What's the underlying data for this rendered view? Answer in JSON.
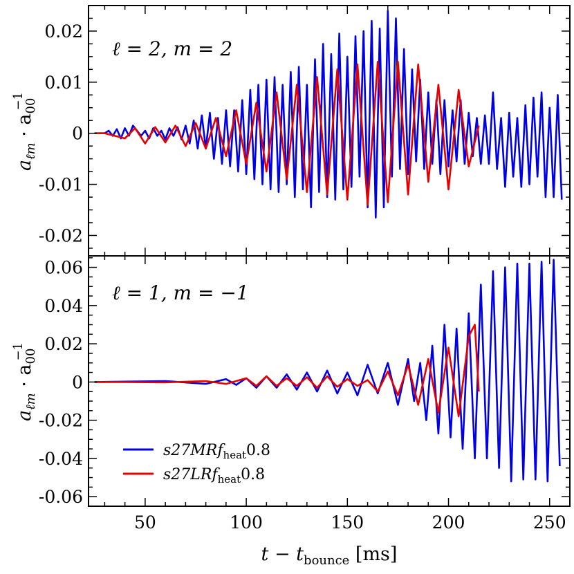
{
  "chart_data": [
    {
      "type": "line",
      "panel": "top",
      "annotation": "ℓ = 2, m = 2",
      "ylabel": "a_ℓm · a_00^-1",
      "xlim": [
        22,
        260
      ],
      "ylim": [
        -0.024,
        0.025
      ],
      "yticks": [
        -0.02,
        -0.01,
        0,
        0.01,
        0.02
      ],
      "ytick_labels": [
        "-0.02",
        "-0.01",
        "0",
        "0.01",
        "0.02"
      ],
      "xticks": [
        50,
        100,
        150,
        200,
        250
      ],
      "series": [
        {
          "name": "s27MRf_heat0.8",
          "color": "#0000e6",
          "x": [
            25,
            30,
            32,
            34,
            36,
            38,
            40,
            42,
            44,
            46,
            48,
            50,
            52,
            54,
            56,
            58,
            60,
            62,
            64,
            66,
            68,
            70,
            72,
            74,
            76,
            78,
            80,
            82,
            84,
            86,
            88,
            90,
            92,
            94,
            96,
            98,
            100,
            102,
            104,
            106,
            108,
            110,
            112,
            114,
            116,
            118,
            120,
            122,
            124,
            126,
            128,
            130,
            132,
            134,
            136,
            138,
            140,
            142,
            144,
            146,
            148,
            150,
            152,
            154,
            156,
            158,
            160,
            162,
            164,
            166,
            168,
            170,
            172,
            174,
            176,
            178,
            180,
            182,
            184,
            186,
            188,
            190,
            192,
            194,
            196,
            198,
            200,
            202,
            204,
            206,
            208,
            210,
            212,
            214,
            216,
            218,
            220,
            222,
            224,
            226,
            228,
            230,
            232,
            234,
            236,
            238,
            240,
            242,
            244,
            246,
            248,
            250,
            252,
            254,
            256
          ],
          "y": [
            0,
            0,
            0.0005,
            -0.0005,
            0.0008,
            -0.001,
            0.001,
            -0.0005,
            0.0015,
            0.0005,
            -0.0005,
            0.0005,
            -0.001,
            0.001,
            -0.0005,
            0.0005,
            -0.0012,
            0.001,
            -0.0005,
            0.0012,
            -0.0012,
            0.0015,
            -0.002,
            0.0025,
            -0.003,
            0.0035,
            -0.003,
            0.004,
            -0.005,
            0.003,
            -0.006,
            0.0045,
            -0.0065,
            0.0045,
            -0.0075,
            0.0065,
            -0.008,
            0.0085,
            -0.009,
            0.0095,
            -0.01,
            0.0105,
            -0.011,
            0.011,
            -0.0115,
            0.0095,
            -0.01,
            0.012,
            -0.0125,
            0.013,
            -0.011,
            0.0095,
            -0.0145,
            0.0145,
            -0.0115,
            0.0175,
            -0.0125,
            0.0155,
            -0.013,
            0.0195,
            -0.011,
            0.015,
            -0.0105,
            0.019,
            -0.0085,
            0.02,
            -0.0145,
            0.022,
            -0.0165,
            0.0205,
            -0.0145,
            0.024,
            -0.0085,
            0.0225,
            -0.007,
            0.0165,
            -0.008,
            0.0125,
            -0.0055,
            0.0105,
            -0.007,
            0.008,
            -0.006,
            0.0065,
            -0.008,
            0.0065,
            -0.0065,
            0.0045,
            -0.0055,
            0.0065,
            -0.006,
            0.004,
            -0.0045,
            0.003,
            -0.006,
            0.0035,
            -0.006,
            0.008,
            -0.007,
            0.003,
            -0.0105,
            0.004,
            -0.0085,
            0.003,
            -0.0105,
            0.0055,
            -0.01,
            0.007,
            -0.0085,
            0.008,
            -0.0125,
            0.005,
            -0.0125,
            0.0075,
            -0.013
          ]
        },
        {
          "name": "s27LRf_heat0.8",
          "color": "#e60000",
          "x": [
            25,
            30,
            35,
            40,
            45,
            50,
            55,
            60,
            65,
            70,
            75,
            80,
            85,
            90,
            95,
            100,
            105,
            110,
            115,
            120,
            125,
            130,
            135,
            140,
            145,
            150,
            155,
            160,
            165,
            170,
            175,
            180,
            185,
            190,
            195,
            200,
            205,
            210,
            215
          ],
          "y": [
            0,
            0,
            -0.0005,
            -0.001,
            0.001,
            -0.002,
            0.0012,
            -0.0018,
            0.0015,
            -0.0025,
            0.002,
            -0.003,
            0.003,
            -0.0045,
            0.0045,
            -0.006,
            0.006,
            -0.0075,
            0.008,
            -0.009,
            0.0095,
            -0.0115,
            0.011,
            -0.012,
            0.0125,
            -0.013,
            0.0135,
            -0.014,
            0.014,
            -0.0135,
            0.014,
            -0.012,
            0.0135,
            -0.0095,
            0.0095,
            -0.011,
            0.0085,
            -0.0065,
            0.0015
          ]
        }
      ]
    },
    {
      "type": "line",
      "panel": "bottom",
      "annotation": "ℓ = 1, m = −1",
      "ylabel": "a_ℓm · a_00^-1",
      "xlabel": "t − t_bounce [ms]",
      "xlim": [
        22,
        260
      ],
      "ylim": [
        -0.065,
        0.066
      ],
      "yticks": [
        -0.06,
        -0.04,
        -0.02,
        0,
        0.02,
        0.04,
        0.06
      ],
      "ytick_labels": [
        "-0.06",
        "-0.04",
        "-0.02",
        "0",
        "0.02",
        "0.04",
        "0.06"
      ],
      "xticks": [
        50,
        100,
        150,
        200,
        250
      ],
      "xtick_labels": [
        "50",
        "100",
        "150",
        "200",
        "250"
      ],
      "series": [
        {
          "name": "s27MRf_heat0.8",
          "color": "#0000e6",
          "x": [
            25,
            40,
            60,
            80,
            90,
            95,
            100,
            105,
            110,
            115,
            120,
            125,
            130,
            135,
            140,
            145,
            150,
            155,
            160,
            165,
            170,
            175,
            180,
            183,
            186,
            189,
            192,
            195,
            198,
            201,
            204,
            207,
            210,
            213,
            216,
            219,
            222,
            225,
            228,
            231,
            234,
            237,
            240,
            243,
            246,
            249,
            252,
            255
          ],
          "y": [
            0,
            0.0002,
            0.0005,
            -0.001,
            0.0015,
            -0.0015,
            0.002,
            -0.003,
            0.003,
            -0.003,
            0.004,
            -0.004,
            0.005,
            -0.005,
            0.006,
            -0.006,
            0.005,
            -0.007,
            0.009,
            -0.006,
            0.01,
            -0.012,
            0.012,
            -0.01,
            0.01,
            -0.02,
            0.019,
            -0.027,
            0.03,
            -0.029,
            0.028,
            -0.035,
            0.036,
            -0.04,
            0.051,
            -0.04,
            0.058,
            -0.045,
            0.06,
            -0.052,
            0.062,
            -0.051,
            0.062,
            -0.051,
            0.063,
            -0.052,
            0.064,
            -0.044
          ]
        },
        {
          "name": "s27LRf_heat0.8",
          "color": "#e60000",
          "x": [
            25,
            40,
            60,
            80,
            90,
            100,
            105,
            110,
            115,
            120,
            125,
            130,
            135,
            140,
            145,
            150,
            155,
            160,
            165,
            170,
            175,
            180,
            185,
            190,
            195,
            200,
            205,
            210,
            213,
            215
          ],
          "y": [
            0,
            0,
            -0.0002,
            0.0005,
            -0.001,
            0.002,
            -0.002,
            0.003,
            -0.002,
            0.002,
            -0.002,
            0.0025,
            -0.003,
            0.003,
            -0.0025,
            0.0015,
            -0.002,
            0.001,
            -0.005,
            0.0055,
            -0.007,
            0.009,
            -0.012,
            0.012,
            -0.016,
            0.018,
            -0.018,
            0.024,
            0.03,
            -0.005
          ]
        }
      ]
    }
  ],
  "legend": {
    "placement": "lower-left of bottom panel",
    "entries": [
      {
        "prefix": "s27MR",
        "symbol": "f",
        "subscript": "heat",
        "suffix": "0.8",
        "color": "#0000e6"
      },
      {
        "prefix": "s27LR",
        "symbol": "f",
        "subscript": "heat",
        "suffix": "0.8",
        "color": "#e60000"
      }
    ]
  },
  "labels": {
    "ylabel_main": "a",
    "ylabel_sub": "ℓm",
    "ylabel_dot": " · a",
    "ylabel_sub2": "00",
    "ylabel_sup": "−1",
    "xlabel_main": "t − t",
    "xlabel_sub": "bounce",
    "xlabel_unit": " [ms]",
    "top_annotation_1": "ℓ = 2, ",
    "top_annotation_2": "m = 2",
    "bottom_annotation_1": "ℓ = 1, ",
    "bottom_annotation_2": "m = −1"
  }
}
